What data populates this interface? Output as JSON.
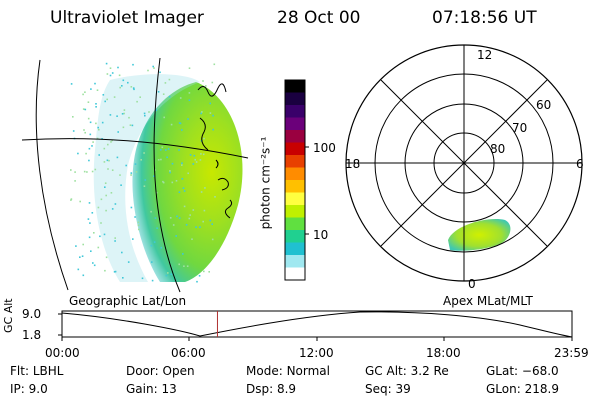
{
  "header": {
    "title": "Ultraviolet Imager",
    "date": "28 Oct 00",
    "time": "07:18:56 UT"
  },
  "colorbar": {
    "unit_label": "photon cm⁻²s⁻¹",
    "ticks": [
      "100",
      "10"
    ],
    "colors": [
      "#000000",
      "#1a0040",
      "#3a006a",
      "#6b007a",
      "#9a0040",
      "#c80000",
      "#e84000",
      "#ff8c00",
      "#ffc000",
      "#ffff40",
      "#c0f000",
      "#60e040",
      "#20d090",
      "#20c0d0",
      "#a0e8f0",
      "#ffffff"
    ]
  },
  "polar_plot": {
    "mlt_labels": {
      "top": "12",
      "left": "18",
      "right": "6",
      "bottom": "0"
    },
    "lat_labels": [
      "60",
      "70",
      "80"
    ],
    "caption": "Apex MLat/MLT"
  },
  "image_panel": {
    "caption": "Geographic Lat/Lon"
  },
  "orbit": {
    "axis_label": "GC Alt",
    "y_ticks": [
      "9.0",
      "1.8"
    ],
    "x_ticks": [
      "00:00",
      "06:00",
      "12:00",
      "18:00",
      "23:59"
    ],
    "marker_time_hours": 7.316
  },
  "status": {
    "row1": [
      {
        "key": "Flt:",
        "value": "LBHL"
      },
      {
        "key": "Door:",
        "value": "Open"
      },
      {
        "key": "Mode:",
        "value": "Normal"
      },
      {
        "key": "GC Alt:",
        "value": "3.2 Re"
      },
      {
        "key": "GLat:",
        "value": "−68.0"
      }
    ],
    "row2": [
      {
        "key": "IP:",
        "value": "9.0"
      },
      {
        "key": "Gain:",
        "value": "13"
      },
      {
        "key": "Dsp:",
        "value": "8.9"
      },
      {
        "key": "Seq:",
        "value": "39"
      },
      {
        "key": "GLon:",
        "value": "218.9"
      }
    ]
  }
}
